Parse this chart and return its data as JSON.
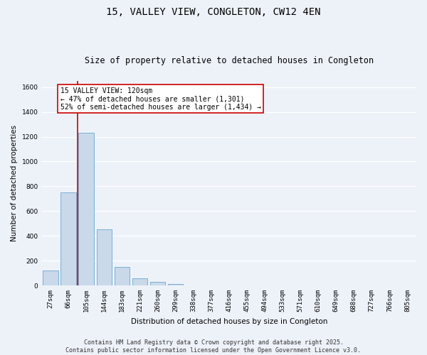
{
  "title": "15, VALLEY VIEW, CONGLETON, CW12 4EN",
  "subtitle": "Size of property relative to detached houses in Congleton",
  "xlabel": "Distribution of detached houses by size in Congleton",
  "ylabel": "Number of detached properties",
  "categories": [
    "27sqm",
    "66sqm",
    "105sqm",
    "144sqm",
    "183sqm",
    "221sqm",
    "260sqm",
    "299sqm",
    "338sqm",
    "377sqm",
    "416sqm",
    "455sqm",
    "494sqm",
    "533sqm",
    "571sqm",
    "610sqm",
    "649sqm",
    "688sqm",
    "727sqm",
    "766sqm",
    "805sqm"
  ],
  "values": [
    120,
    750,
    1230,
    450,
    150,
    55,
    30,
    10,
    0,
    0,
    0,
    0,
    0,
    0,
    0,
    0,
    0,
    0,
    0,
    0,
    0
  ],
  "bar_color": "#c9d9ea",
  "bar_edge_color": "#7bafd4",
  "background_color": "#edf2f9",
  "grid_color": "#ffffff",
  "red_line_x": 1.5,
  "ylim": [
    0,
    1650
  ],
  "yticks": [
    0,
    200,
    400,
    600,
    800,
    1000,
    1200,
    1400,
    1600
  ],
  "annotation_title": "15 VALLEY VIEW: 120sqm",
  "annotation_line1": "← 47% of detached houses are smaller (1,301)",
  "annotation_line2": "52% of semi-detached houses are larger (1,434) →",
  "annotation_box_color": "#ffffff",
  "annotation_border_color": "#cc0000",
  "footer_line1": "Contains HM Land Registry data © Crown copyright and database right 2025.",
  "footer_line2": "Contains public sector information licensed under the Open Government Licence v3.0.",
  "title_fontsize": 10,
  "subtitle_fontsize": 8.5,
  "axis_label_fontsize": 7.5,
  "tick_fontsize": 6.5,
  "annotation_fontsize": 7,
  "footer_fontsize": 6
}
